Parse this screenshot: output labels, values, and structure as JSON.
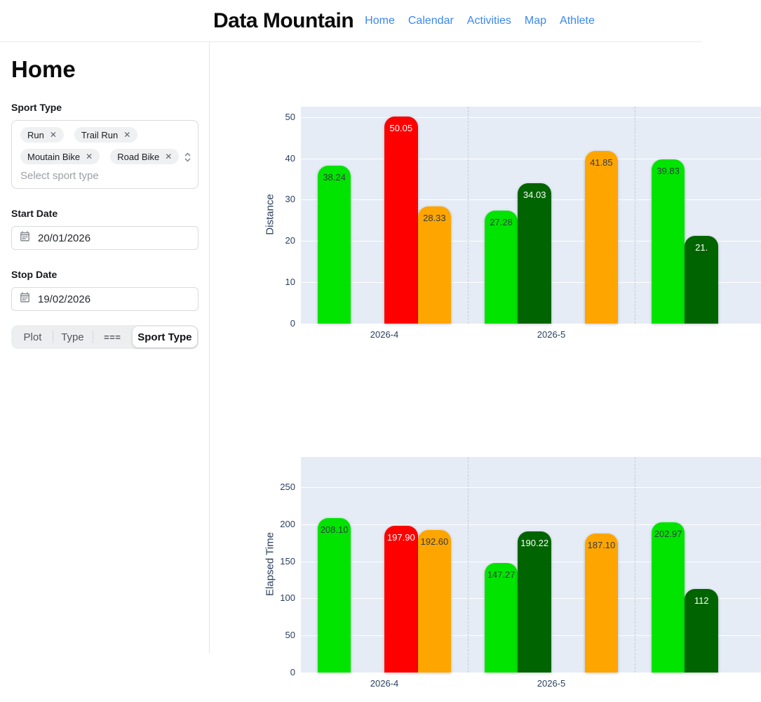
{
  "header": {
    "title": "Data Mountain",
    "nav": [
      {
        "label": "Home"
      },
      {
        "label": "Calendar"
      },
      {
        "label": "Activities"
      },
      {
        "label": "Map"
      },
      {
        "label": "Athlete"
      }
    ],
    "link_color": "#3c87f0"
  },
  "sidebar": {
    "heading": "Home",
    "sport_type": {
      "label": "Sport Type",
      "placeholder": "Select sport type",
      "chips": [
        "Run",
        "Trail Run",
        "Moutain Bike",
        "Road Bike"
      ]
    },
    "start_date": {
      "label": "Start Date",
      "value": "20/01/2026"
    },
    "stop_date": {
      "label": "Stop Date",
      "value": "19/02/2026"
    },
    "view_buttons": [
      {
        "label": "Plot",
        "active": false
      },
      {
        "label": "Type",
        "active": false
      },
      {
        "label": "===",
        "active": false,
        "glyph": true
      },
      {
        "label": "Sport Type",
        "active": true
      }
    ]
  },
  "colors": {
    "plot_bg": "#e5ecf6",
    "grid": "#ffffff",
    "axis_text": "#2a3f5f",
    "group_separator": "#c5cad2",
    "sports": {
      "Run": {
        "color": "#00e400",
        "text": "#333b42"
      },
      "Moutain Bike": {
        "color": "#006400",
        "text": "#ffffff"
      },
      "Trail Run": {
        "color": "#ff0000",
        "text": "#ffffff"
      },
      "Road Bike": {
        "color": "#ffa500",
        "text": "#333b42"
      }
    }
  },
  "chart_data": [
    {
      "type": "bar",
      "title": "",
      "xlabel": "",
      "ylabel": "Distance",
      "yticks": [
        0,
        10,
        20,
        30,
        40,
        50
      ],
      "ylim": [
        0,
        52.5
      ],
      "grid": true,
      "legend": "none",
      "sport_order": [
        "Run",
        "Moutain Bike",
        "Trail Run",
        "Road Bike"
      ],
      "groups": [
        {
          "category": "2026-4",
          "bars": [
            {
              "sport": "Run",
              "value": 38.24,
              "label": "38.24"
            },
            {
              "sport": "Trail Run",
              "value": 50.05,
              "label": "50.05"
            },
            {
              "sport": "Road Bike",
              "value": 28.33,
              "label": "28.33"
            }
          ]
        },
        {
          "category": "2026-5",
          "bars": [
            {
              "sport": "Run",
              "value": 27.28,
              "label": "27.28"
            },
            {
              "sport": "Moutain Bike",
              "value": 34.03,
              "label": "34.03"
            },
            {
              "sport": "Road Bike",
              "value": 41.85,
              "label": "41.85"
            }
          ]
        },
        {
          "category": "",
          "bars": [
            {
              "sport": "Run",
              "value": 39.83,
              "label": "39.83"
            },
            {
              "sport": "Moutain Bike",
              "value": 21.3,
              "label": "21.",
              "clipped": true
            }
          ]
        }
      ]
    },
    {
      "type": "bar",
      "title": "",
      "xlabel": "",
      "ylabel": "Elapsed Time",
      "yticks": [
        0,
        50,
        100,
        150,
        200,
        250
      ],
      "ylim": [
        0,
        290.7
      ],
      "grid": true,
      "legend": "none",
      "sport_order": [
        "Run",
        "Moutain Bike",
        "Trail Run",
        "Road Bike"
      ],
      "groups": [
        {
          "category": "2026-4",
          "bars": [
            {
              "sport": "Run",
              "value": 208.1,
              "label": "208.10"
            },
            {
              "sport": "Trail Run",
              "value": 197.9,
              "label": "197.90"
            },
            {
              "sport": "Road Bike",
              "value": 192.6,
              "label": "192.60"
            }
          ]
        },
        {
          "category": "2026-5",
          "bars": [
            {
              "sport": "Run",
              "value": 147.27,
              "label": "147.27"
            },
            {
              "sport": "Moutain Bike",
              "value": 190.22,
              "label": "190.22"
            },
            {
              "sport": "Road Bike",
              "value": 187.1,
              "label": "187.10"
            }
          ]
        },
        {
          "category": "",
          "bars": [
            {
              "sport": "Run",
              "value": 202.97,
              "label": "202.97"
            },
            {
              "sport": "Moutain Bike",
              "value": 112.5,
              "label": "112",
              "clipped": true
            }
          ]
        }
      ]
    }
  ]
}
